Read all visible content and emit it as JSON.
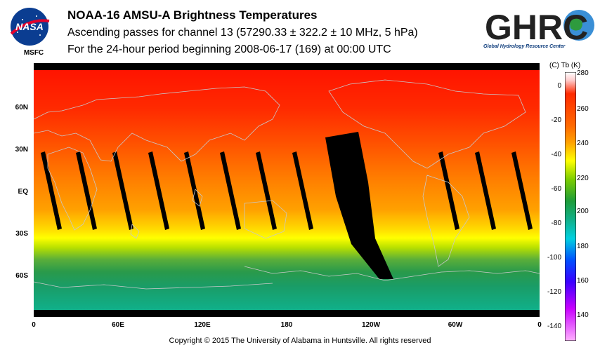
{
  "header": {
    "title": "NOAA-16 AMSU-A Brightness Temperatures",
    "subtitle": "Ascending passes for channel 13 (57290.33 ± 322.2 ± 10 MHz, 5 hPa)",
    "period": "For the 24-hour period beginning 2008-06-17 (169) at 00:00 UTC"
  },
  "logos": {
    "nasa": "NASA",
    "msfc": "MSFC",
    "ghrc": "GHRC",
    "ghrc_full": "Global Hydrology Resource Center"
  },
  "map": {
    "lat_labels": [
      "60N",
      "30N",
      "EQ",
      "30S",
      "60S"
    ],
    "lon_labels": [
      "0",
      "60E",
      "120E",
      "180",
      "120W",
      "60W",
      "0"
    ],
    "colors": {
      "warm": "#ff2a00",
      "orange": "#ff8c00",
      "yellow": "#ffff00",
      "green": "#1d9c3a",
      "teal": "#10b08a",
      "coast": "#c8c8c8"
    }
  },
  "colorbar": {
    "unit_label": "(C)  Tb  (K)",
    "celsius_ticks": [
      "0",
      "-20",
      "-40",
      "-60",
      "-80",
      "-100",
      "-120",
      "-140"
    ],
    "kelvin_ticks": [
      "280",
      "260",
      "240",
      "220",
      "200",
      "180",
      "160",
      "140"
    ]
  },
  "footer": {
    "copyright": "Copyright © 2015 The University of Alabama in Huntsville.  All rights reserved"
  }
}
